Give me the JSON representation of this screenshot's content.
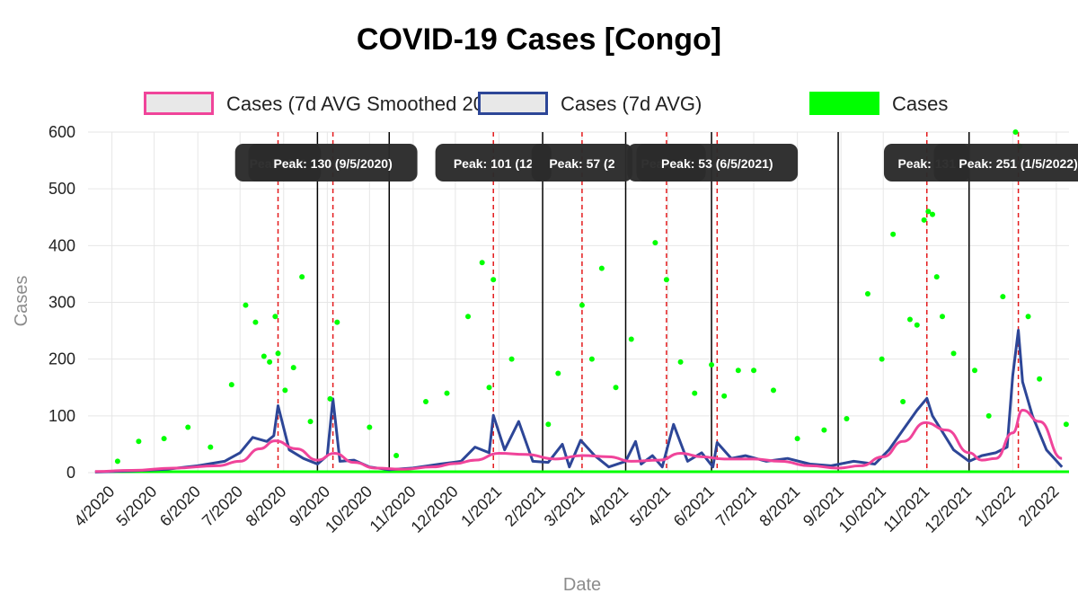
{
  "chart_data": {
    "type": "line",
    "title": "COVID-19 Cases [Congo]",
    "xlabel": "Date",
    "ylabel": "Cases",
    "ylim": [
      0,
      600
    ],
    "yticks": [
      0,
      100,
      200,
      300,
      400,
      500,
      600
    ],
    "xlim": [
      "2020-03-15",
      "2022-02-10"
    ],
    "xticks": [
      {
        "date": "2020-04-01",
        "label": "4/2020"
      },
      {
        "date": "2020-05-01",
        "label": "5/2020"
      },
      {
        "date": "2020-06-01",
        "label": "6/2020"
      },
      {
        "date": "2020-07-01",
        "label": "7/2020"
      },
      {
        "date": "2020-08-01",
        "label": "8/2020"
      },
      {
        "date": "2020-09-01",
        "label": "9/2020"
      },
      {
        "date": "2020-10-01",
        "label": "10/2020"
      },
      {
        "date": "2020-11-01",
        "label": "11/2020"
      },
      {
        "date": "2020-12-01",
        "label": "12/2020"
      },
      {
        "date": "2021-01-01",
        "label": "1/2021"
      },
      {
        "date": "2021-02-01",
        "label": "2/2021"
      },
      {
        "date": "2021-03-01",
        "label": "3/2021"
      },
      {
        "date": "2021-04-01",
        "label": "4/2021"
      },
      {
        "date": "2021-05-01",
        "label": "5/2021"
      },
      {
        "date": "2021-06-01",
        "label": "6/2021"
      },
      {
        "date": "2021-07-01",
        "label": "7/2021"
      },
      {
        "date": "2021-08-01",
        "label": "8/2021"
      },
      {
        "date": "2021-09-01",
        "label": "9/2021"
      },
      {
        "date": "2021-10-01",
        "label": "10/2021"
      },
      {
        "date": "2021-11-01",
        "label": "11/2021"
      },
      {
        "date": "2021-12-01",
        "label": "12/2021"
      },
      {
        "date": "2022-01-01",
        "label": "1/2022"
      },
      {
        "date": "2022-02-01",
        "label": "2/2022"
      }
    ],
    "grid": true,
    "legend_position": "top",
    "legend": [
      {
        "label": "Cases (7d AVG Smoothed 200x)",
        "color": "#f0449a",
        "kind": "line"
      },
      {
        "label": "Cases (7d AVG)",
        "color": "#2d4697",
        "kind": "line"
      },
      {
        "label": "Cases",
        "color": "#00ff00",
        "kind": "fill"
      }
    ],
    "series": [
      {
        "name": "Cases (7d AVG Smoothed 200x)",
        "color": "#f0449a",
        "x": [
          "2020-03-20",
          "2020-04-15",
          "2020-05-15",
          "2020-06-15",
          "2020-07-01",
          "2020-07-15",
          "2020-07-26",
          "2020-08-10",
          "2020-08-25",
          "2020-09-06",
          "2020-09-20",
          "2020-10-05",
          "2020-10-25",
          "2020-11-15",
          "2020-12-01",
          "2020-12-15",
          "2021-01-01",
          "2021-01-20",
          "2021-02-10",
          "2021-03-01",
          "2021-03-20",
          "2021-04-05",
          "2021-04-25",
          "2021-05-10",
          "2021-05-25",
          "2021-06-10",
          "2021-07-01",
          "2021-07-20",
          "2021-08-10",
          "2021-08-30",
          "2021-09-15",
          "2021-10-01",
          "2021-10-15",
          "2021-10-31",
          "2021-11-15",
          "2021-12-01",
          "2021-12-10",
          "2021-12-20",
          "2022-01-01",
          "2022-01-08",
          "2022-01-20",
          "2022-02-05"
        ],
        "y": [
          2,
          4,
          8,
          12,
          20,
          42,
          56,
          42,
          22,
          34,
          18,
          8,
          6,
          10,
          16,
          22,
          34,
          32,
          24,
          30,
          28,
          20,
          22,
          34,
          28,
          24,
          24,
          20,
          12,
          8,
          12,
          28,
          55,
          88,
          75,
          35,
          22,
          25,
          70,
          110,
          90,
          25
        ]
      },
      {
        "name": "Cases (7d AVG)",
        "color": "#2d4697",
        "x": [
          "2020-03-20",
          "2020-04-15",
          "2020-05-10",
          "2020-06-01",
          "2020-06-20",
          "2020-07-01",
          "2020-07-10",
          "2020-07-20",
          "2020-07-25",
          "2020-07-28",
          "2020-08-05",
          "2020-08-15",
          "2020-08-25",
          "2020-09-01",
          "2020-09-05",
          "2020-09-10",
          "2020-09-20",
          "2020-10-01",
          "2020-10-15",
          "2020-11-01",
          "2020-11-20",
          "2020-12-05",
          "2020-12-15",
          "2020-12-25",
          "2020-12-28",
          "2021-01-05",
          "2021-01-15",
          "2021-01-25",
          "2021-02-05",
          "2021-02-15",
          "2021-02-20",
          "2021-02-28",
          "2021-03-10",
          "2021-03-20",
          "2021-04-01",
          "2021-04-08",
          "2021-04-12",
          "2021-04-20",
          "2021-04-27",
          "2021-05-05",
          "2021-05-15",
          "2021-05-25",
          "2021-06-02",
          "2021-06-05",
          "2021-06-15",
          "2021-06-25",
          "2021-07-10",
          "2021-07-25",
          "2021-08-10",
          "2021-08-25",
          "2021-09-10",
          "2021-09-25",
          "2021-10-05",
          "2021-10-15",
          "2021-10-25",
          "2021-11-01",
          "2021-11-05",
          "2021-11-10",
          "2021-11-20",
          "2021-12-01",
          "2021-12-10",
          "2021-12-20",
          "2021-12-28",
          "2022-01-01",
          "2022-01-05",
          "2022-01-08",
          "2022-01-15",
          "2022-01-25",
          "2022-02-05"
        ],
        "y": [
          1,
          3,
          6,
          12,
          20,
          35,
          62,
          55,
          65,
          118,
          40,
          25,
          15,
          30,
          130,
          20,
          22,
          10,
          5,
          8,
          15,
          20,
          45,
          35,
          101,
          40,
          90,
          20,
          18,
          50,
          10,
          57,
          30,
          10,
          20,
          55,
          15,
          30,
          10,
          85,
          20,
          35,
          10,
          53,
          25,
          30,
          20,
          25,
          15,
          12,
          20,
          15,
          40,
          75,
          110,
          131,
          100,
          80,
          40,
          20,
          30,
          35,
          45,
          170,
          251,
          160,
          100,
          40,
          10
        ]
      },
      {
        "name": "Cases",
        "color": "#00ff00",
        "x": [
          "2020-04-05",
          "2020-04-20",
          "2020-05-08",
          "2020-05-25",
          "2020-06-10",
          "2020-06-25",
          "2020-07-05",
          "2020-07-12",
          "2020-07-18",
          "2020-07-22",
          "2020-07-26",
          "2020-07-28",
          "2020-08-02",
          "2020-08-08",
          "2020-08-14",
          "2020-08-20",
          "2020-09-03",
          "2020-09-08",
          "2020-10-01",
          "2020-10-20",
          "2020-11-10",
          "2020-11-25",
          "2020-12-10",
          "2020-12-20",
          "2020-12-25",
          "2020-12-28",
          "2021-01-10",
          "2021-02-05",
          "2021-02-12",
          "2021-03-01",
          "2021-03-08",
          "2021-03-15",
          "2021-03-25",
          "2021-04-05",
          "2021-04-22",
          "2021-04-30",
          "2021-05-10",
          "2021-05-20",
          "2021-06-01",
          "2021-06-10",
          "2021-06-20",
          "2021-07-01",
          "2021-07-15",
          "2021-08-01",
          "2021-08-20",
          "2021-09-05",
          "2021-09-20",
          "2021-09-30",
          "2021-10-08",
          "2021-10-15",
          "2021-10-20",
          "2021-10-25",
          "2021-10-30",
          "2021-11-02",
          "2021-11-05",
          "2021-11-08",
          "2021-11-12",
          "2021-11-20",
          "2021-12-05",
          "2021-12-15",
          "2021-12-25",
          "2022-01-03",
          "2022-01-06",
          "2022-01-12",
          "2022-01-20",
          "2022-02-08"
        ],
        "y": [
          20,
          55,
          60,
          80,
          45,
          155,
          295,
          265,
          205,
          195,
          275,
          210,
          145,
          185,
          345,
          90,
          130,
          265,
          80,
          30,
          125,
          140,
          275,
          370,
          150,
          340,
          200,
          85,
          175,
          295,
          200,
          360,
          150,
          235,
          405,
          340,
          195,
          140,
          190,
          135,
          180,
          180,
          145,
          60,
          75,
          95,
          315,
          200,
          420,
          125,
          270,
          260,
          445,
          460,
          455,
          345,
          275,
          210,
          180,
          100,
          310,
          600,
          575,
          275,
          165,
          85
        ]
      }
    ],
    "peak_markers": [
      "2020-07-28",
      "2020-09-05",
      "2020-12-28",
      "2021-03-01",
      "2021-04-30",
      "2021-06-05",
      "2021-11-01",
      "2022-01-05"
    ],
    "wave_boundaries": [
      "2020-08-25",
      "2020-10-15",
      "2021-02-01",
      "2021-04-01",
      "2021-06-01",
      "2021-08-30",
      "2021-12-01"
    ],
    "annotations": [
      {
        "text": "Peak: 118",
        "date": "2020-07-28"
      },
      {
        "text": "Peak: 130 (9/5/2020)",
        "date": "2020-09-05"
      },
      {
        "text": "Peak: 101 (12",
        "date": "2020-12-28"
      },
      {
        "text": "Peak: 57 (2",
        "date": "2021-03-01"
      },
      {
        "text": "Peak: 85",
        "date": "2021-04-30"
      },
      {
        "text": "Peak: 53 (6/5/2021)",
        "date": "2021-06-05"
      },
      {
        "text": "Peak: 131",
        "date": "2021-11-01"
      },
      {
        "text": "Peak: 251 (1/5/2022)",
        "date": "2022-01-05"
      }
    ]
  }
}
